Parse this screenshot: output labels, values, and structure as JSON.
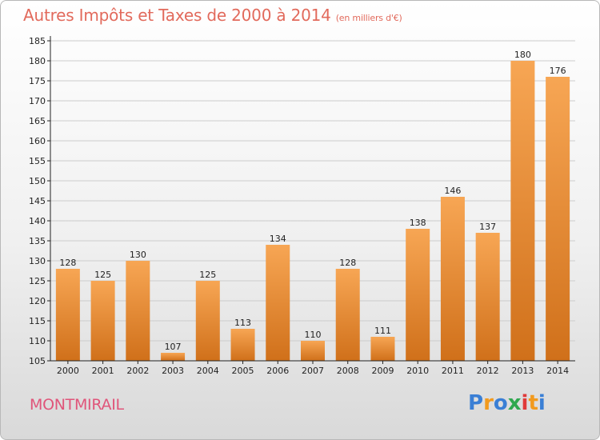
{
  "title": "Autres Impôts et Taxes de 2000 à 2014",
  "subtitle": "(en milliers d'€)",
  "commune": "MONTMIRAIL",
  "logo": {
    "letters": [
      "P",
      "r",
      "o",
      "x",
      "i",
      "t",
      "i"
    ],
    "colors": [
      "#3a7fd5",
      "#f29a1e",
      "#3a7fd5",
      "#2fa84f",
      "#e03a3a",
      "#f29a1e",
      "#3a7fd5"
    ]
  },
  "colors": {
    "bar_top": "#f7a654",
    "bar_bottom": "#d0701a",
    "grid": "#cccccc",
    "axis": "#222222"
  },
  "chart_data": {
    "type": "bar",
    "title": "Autres Impôts et Taxes de 2000 à 2014",
    "categories": [
      "2000",
      "2001",
      "2002",
      "2003",
      "2004",
      "2005",
      "2006",
      "2007",
      "2008",
      "2009",
      "2010",
      "2011",
      "2012",
      "2013",
      "2014"
    ],
    "values": [
      128,
      125,
      130,
      107,
      125,
      113,
      134,
      110,
      128,
      111,
      138,
      146,
      137,
      180,
      176
    ],
    "ylim": [
      105,
      185
    ],
    "yticks": [
      105,
      110,
      115,
      120,
      125,
      130,
      135,
      140,
      145,
      150,
      155,
      160,
      165,
      170,
      175,
      180,
      185
    ],
    "grid": true,
    "xlabel": "",
    "ylabel": ""
  }
}
